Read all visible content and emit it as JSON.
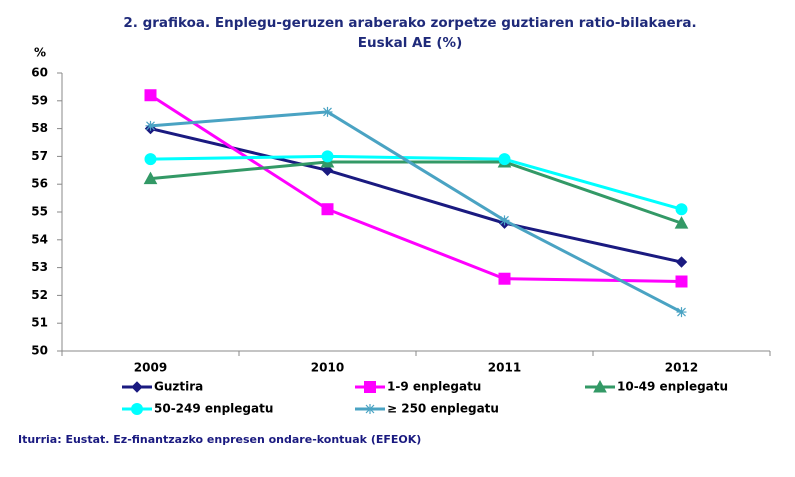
{
  "chart_data": {
    "type": "line",
    "title": "2. grafikoa. Enplegu-geruzen araberako zorpetze guztiaren ratio-bilakaera.",
    "subtitle": "Euskal AE (%)",
    "y_label": "%",
    "categories": [
      "2009",
      "2010",
      "2011",
      "2012"
    ],
    "series": [
      {
        "name": "Guztira",
        "color": "#1a1a80",
        "marker": "diamond",
        "values": [
          58.0,
          56.5,
          54.6,
          53.2
        ]
      },
      {
        "name": "1-9 enplegatu",
        "color": "#ff00ff",
        "marker": "square",
        "values": [
          59.2,
          55.1,
          52.6,
          52.5
        ]
      },
      {
        "name": "10-49 enplegatu",
        "color": "#339966",
        "marker": "triangle",
        "values": [
          56.2,
          56.8,
          56.8,
          54.6
        ]
      },
      {
        "name": "50-249 enplegatu",
        "color": "#00ffff",
        "marker": "circle",
        "values": [
          56.9,
          57.0,
          56.9,
          55.1
        ]
      },
      {
        "name": "≥ 250 enplegatu",
        "color": "#4aa3c3",
        "marker": "star",
        "values": [
          58.1,
          58.6,
          54.7,
          51.4
        ]
      }
    ],
    "ylim": [
      50,
      60
    ],
    "yticks": [
      50,
      51,
      52,
      53,
      54,
      55,
      56,
      57,
      58,
      59,
      60
    ],
    "source": "Iturria: Eustat. Ez-finantzazko enpresen ondare-kontuak (EFEOK)"
  }
}
